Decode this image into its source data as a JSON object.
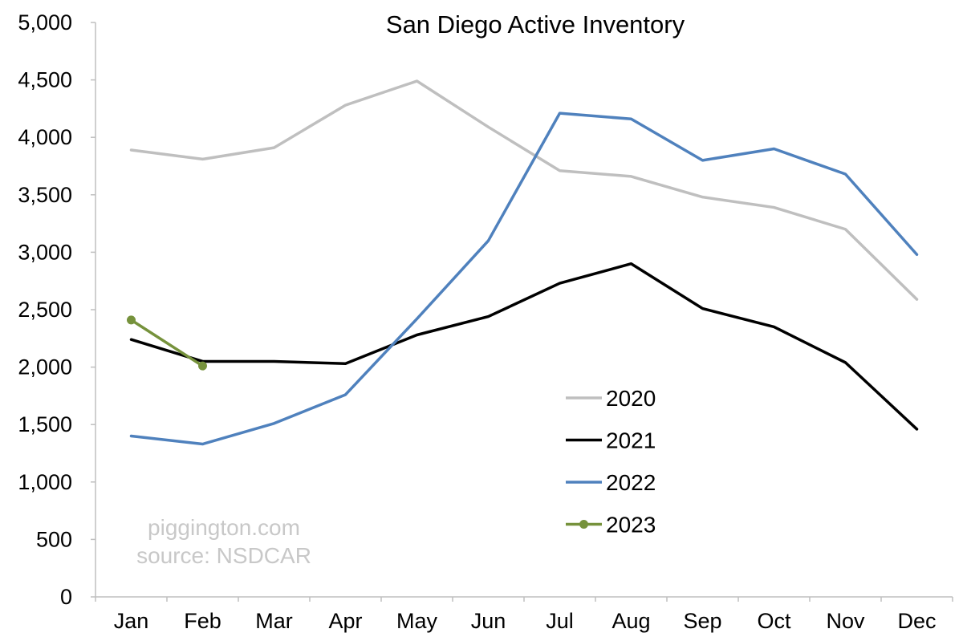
{
  "chart_data": {
    "type": "line",
    "title": "San Diego Active Inventory",
    "categories": [
      "Jan",
      "Feb",
      "Mar",
      "Apr",
      "May",
      "Jun",
      "Jul",
      "Aug",
      "Sep",
      "Oct",
      "Nov",
      "Dec"
    ],
    "ylim": [
      0,
      5000
    ],
    "yticks": [
      0,
      500,
      1000,
      1500,
      2000,
      2500,
      3000,
      3500,
      4000,
      4500,
      5000
    ],
    "ytick_labels": [
      "0",
      "500",
      "1,000",
      "1,500",
      "2,000",
      "2,500",
      "3,000",
      "3,500",
      "4,000",
      "4,500",
      "5,000"
    ],
    "grid": false,
    "legend_position": "lower-right",
    "series": [
      {
        "name": "2020",
        "color": "#bfbfbf",
        "markers": false,
        "values": [
          3890,
          3810,
          3910,
          4280,
          4490,
          4090,
          3710,
          3660,
          3480,
          3390,
          3200,
          2590
        ]
      },
      {
        "name": "2021",
        "color": "#000000",
        "markers": false,
        "values": [
          2240,
          2050,
          2050,
          2030,
          2280,
          2440,
          2730,
          2900,
          2510,
          2350,
          2040,
          1460
        ]
      },
      {
        "name": "2022",
        "color": "#4f81bd",
        "markers": false,
        "values": [
          1400,
          1330,
          1510,
          1760,
          2420,
          3100,
          4210,
          4160,
          3800,
          3900,
          3680,
          2980
        ]
      },
      {
        "name": "2023",
        "color": "#76923c",
        "markers": true,
        "values": [
          2410,
          2010,
          null,
          null,
          null,
          null,
          null,
          null,
          null,
          null,
          null,
          null
        ]
      }
    ],
    "annotations": [
      "piggington.com",
      "source: NSDCAR"
    ]
  }
}
